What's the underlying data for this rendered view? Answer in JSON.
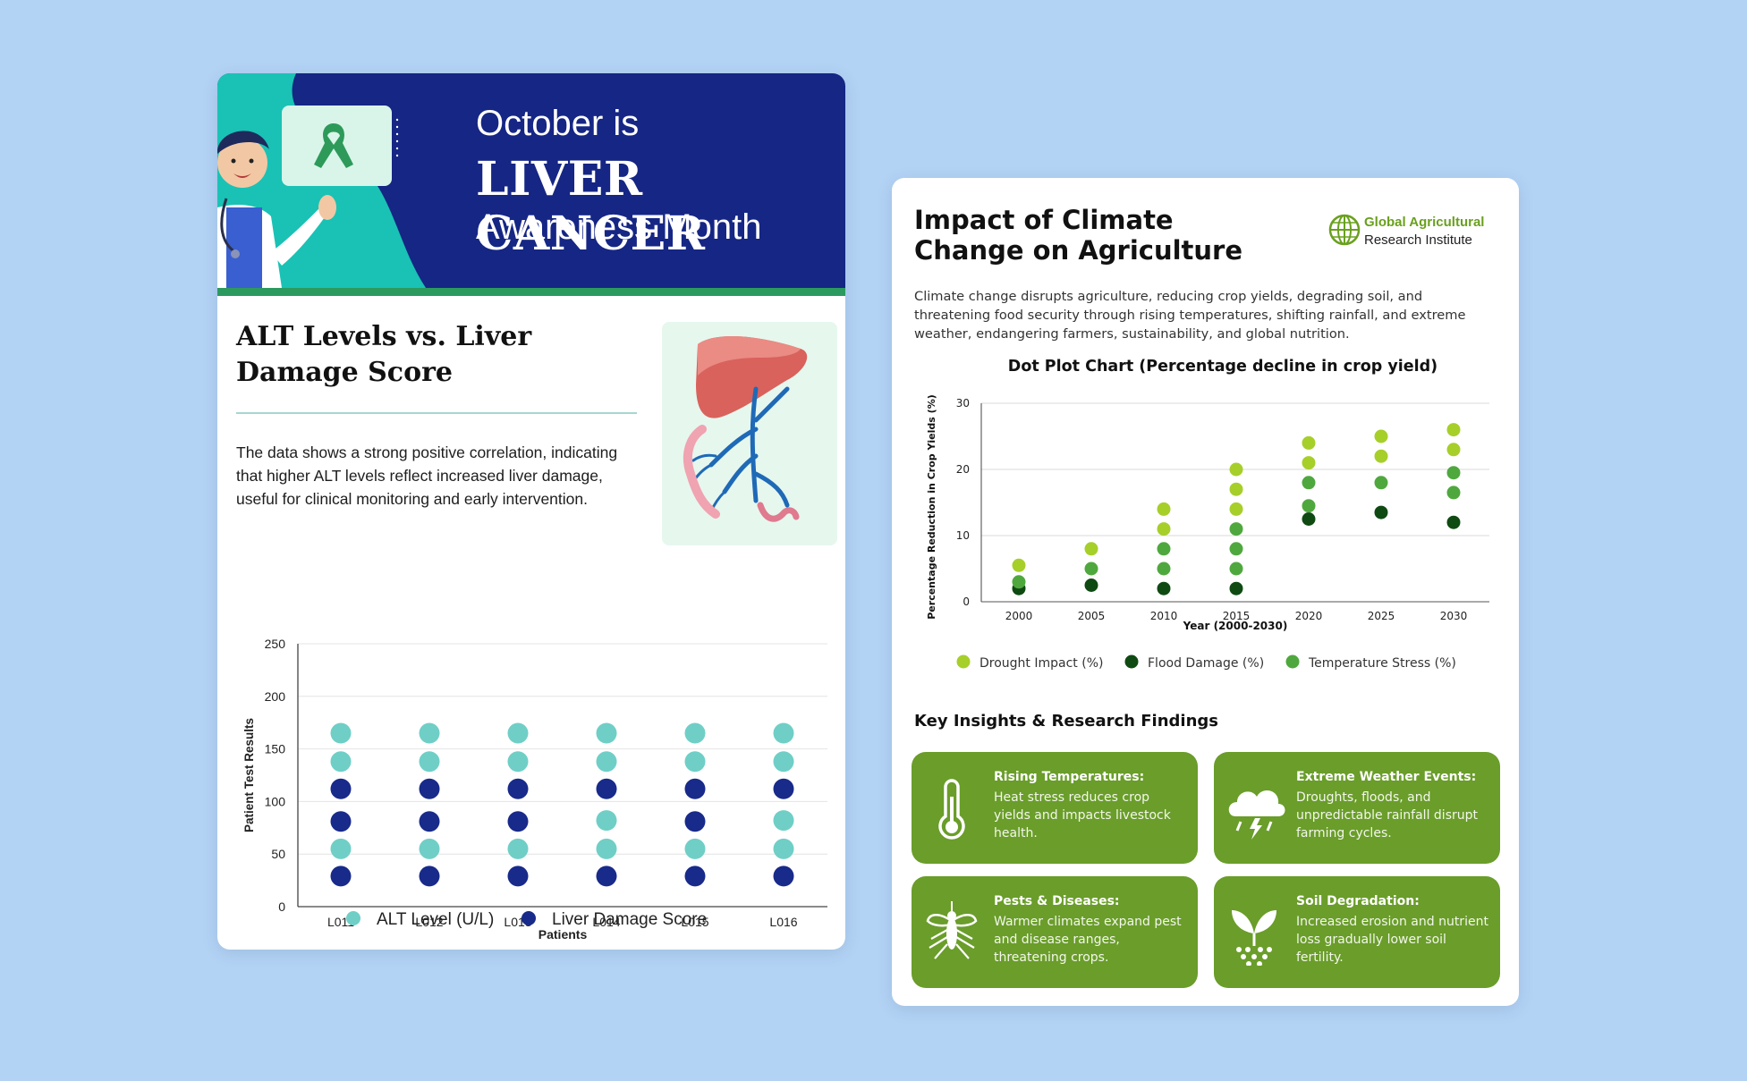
{
  "liver": {
    "banner": {
      "line1": "October is",
      "line2": "LIVER CANCER",
      "line3": "Awareness Month"
    },
    "title": "ALT Levels vs. Liver Damage Score",
    "description": "The data shows a strong positive correlation, indicating that higher ALT levels reflect increased liver damage, useful for clinical monitoring and early intervention.",
    "colors": {
      "banner": "#152684",
      "teal": "#6fcfc7",
      "navy": "#182a8a",
      "stripe": "#2c9a5f"
    }
  },
  "climate": {
    "title": "Impact of Climate Change on Agriculture",
    "org": {
      "line1": "Global Agricultural",
      "line2": "Research Institute"
    },
    "description": "Climate change disrupts agriculture, reducing crop yields, degrading soil, and threatening food security through rising temperatures, shifting rainfall, and extreme weather, endangering farmers, sustainability, and global nutrition.",
    "insights_title": "Key Insights & Research Findings",
    "insights": [
      {
        "title": "Rising Temperatures:",
        "body": "Heat stress reduces crop yields and impacts livestock health.",
        "icon": "thermometer-icon"
      },
      {
        "title": "Extreme Weather Events:",
        "body": "Droughts, floods, and unpredictable rainfall disrupt farming cycles.",
        "icon": "storm-cloud-icon"
      },
      {
        "title": "Pests & Diseases:",
        "body": "Warmer climates expand pest and disease ranges, threatening crops.",
        "icon": "mosquito-icon"
      },
      {
        "title": "Soil Degradation:",
        "body": "Increased erosion and nutrient loss gradually lower soil fertility.",
        "icon": "sprout-icon"
      }
    ],
    "colors": {
      "card": "#6a9d2a",
      "drought": "#a6cf2a",
      "flood": "#0f4a12",
      "temperature": "#4fa83e"
    }
  },
  "chart_data": [
    {
      "type": "scatter",
      "title": "",
      "xlabel": "Patients",
      "ylabel": "Patient Test Results",
      "categories": [
        "L011",
        "L012",
        "L013",
        "L014",
        "L015",
        "L016"
      ],
      "ylim": [
        0,
        250
      ],
      "yticks": [
        0,
        50,
        100,
        150,
        200,
        250
      ],
      "grid": true,
      "legend": "bottom",
      "series": [
        {
          "name": "ALT Level (U/L)",
          "color": "#6fcfc7",
          "points": [
            [
              0,
              165
            ],
            [
              0,
              138
            ],
            [
              0,
              55
            ],
            [
              1,
              165
            ],
            [
              1,
              138
            ],
            [
              1,
              55
            ],
            [
              2,
              165
            ],
            [
              2,
              138
            ],
            [
              2,
              55
            ],
            [
              3,
              165
            ],
            [
              3,
              138
            ],
            [
              3,
              82
            ],
            [
              3,
              55
            ],
            [
              4,
              165
            ],
            [
              4,
              138
            ],
            [
              4,
              55
            ],
            [
              5,
              165
            ],
            [
              5,
              138
            ],
            [
              5,
              82
            ],
            [
              5,
              55
            ]
          ]
        },
        {
          "name": "Liver Damage Score",
          "color": "#182a8a",
          "points": [
            [
              0,
              112
            ],
            [
              0,
              81
            ],
            [
              0,
              29
            ],
            [
              1,
              112
            ],
            [
              1,
              81
            ],
            [
              1,
              29
            ],
            [
              2,
              112
            ],
            [
              2,
              81
            ],
            [
              2,
              29
            ],
            [
              3,
              112
            ],
            [
              3,
              29
            ],
            [
              4,
              112
            ],
            [
              4,
              81
            ],
            [
              4,
              29
            ],
            [
              5,
              112
            ],
            [
              5,
              29
            ]
          ]
        }
      ]
    },
    {
      "type": "scatter",
      "title": "Dot Plot Chart (Percentage decline in crop yield)",
      "xlabel": "Year (2000-2030)",
      "ylabel": "Percentage Reduction in Crop Yields (%)",
      "categories": [
        "2000",
        "2005",
        "2010",
        "2015",
        "2020",
        "2025",
        "2030"
      ],
      "ylim": [
        0,
        30
      ],
      "yticks": [
        0,
        10,
        20,
        30
      ],
      "grid": true,
      "legend": "bottom",
      "series": [
        {
          "name": "Drought Impact (%)",
          "color": "#a6cf2a",
          "points": [
            [
              0,
              5.5
            ],
            [
              1,
              8
            ],
            [
              2,
              14
            ],
            [
              2,
              11
            ],
            [
              3,
              20
            ],
            [
              3,
              17
            ],
            [
              3,
              14
            ],
            [
              4,
              24
            ],
            [
              4,
              21
            ],
            [
              5,
              25
            ],
            [
              5,
              22
            ],
            [
              6,
              26
            ],
            [
              6,
              23
            ]
          ]
        },
        {
          "name": "Flood Damage (%)",
          "color": "#0f4a12",
          "points": [
            [
              0,
              2
            ],
            [
              1,
              2.5
            ],
            [
              2,
              2
            ],
            [
              3,
              2
            ],
            [
              4,
              12.5
            ],
            [
              5,
              13.5
            ],
            [
              6,
              12
            ]
          ]
        },
        {
          "name": "Temperature Stress (%)",
          "color": "#4fa83e",
          "points": [
            [
              0,
              3
            ],
            [
              1,
              5
            ],
            [
              2,
              8
            ],
            [
              2,
              5
            ],
            [
              3,
              11
            ],
            [
              3,
              8
            ],
            [
              3,
              5
            ],
            [
              4,
              18
            ],
            [
              4,
              14.5
            ],
            [
              5,
              18
            ],
            [
              6,
              19.5
            ],
            [
              6,
              16.5
            ]
          ]
        }
      ]
    }
  ]
}
